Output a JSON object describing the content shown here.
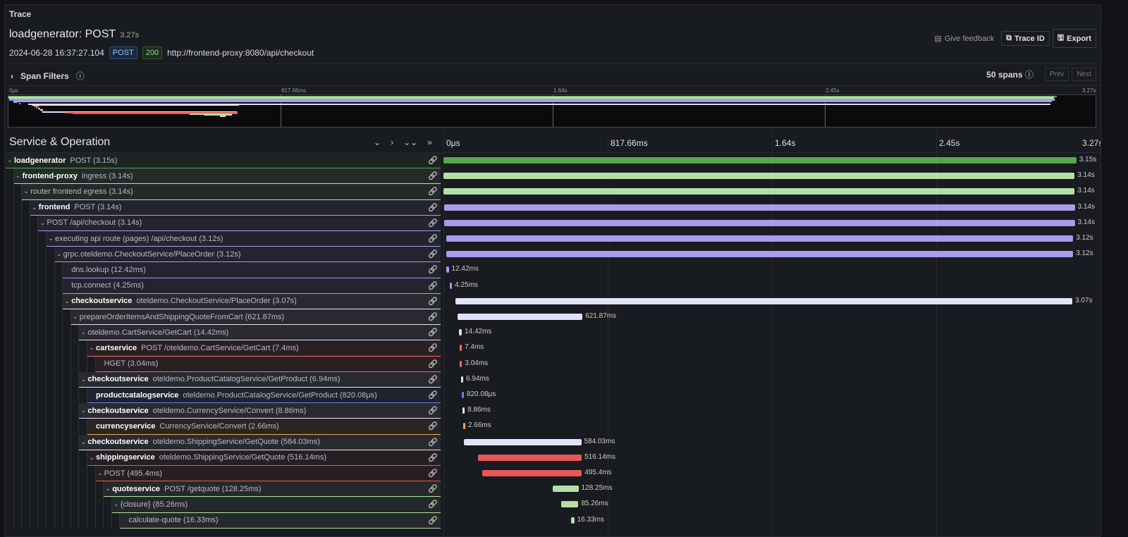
{
  "panel": {
    "title": "Trace"
  },
  "trace": {
    "name": "loadgenerator: POST",
    "duration": "3.27s",
    "timestamp": "2024-06-28 16:37:27.104",
    "method": "POST",
    "status": "200",
    "url": "http://frontend-proxy:8080/api/checkout"
  },
  "actions": {
    "feedback": "Give feedback",
    "trace_id": "Trace ID",
    "export": "Export"
  },
  "filters": {
    "label": "Span Filters",
    "span_count": "50 spans",
    "prev": "Prev",
    "next": "Next"
  },
  "minimap": {
    "ticks": [
      "0μs",
      "817.66ms",
      "1.64s",
      "2.45s",
      "3.27s"
    ]
  },
  "header": {
    "title": "Service & Operation",
    "ticks": [
      "0μs",
      "817.66ms",
      "1.64s",
      "2.45s",
      "3.27s"
    ]
  },
  "timeline": {
    "total_s": 3.27
  },
  "colors": {
    "loadgenerator": "#56a64b",
    "frontend-proxy": "#b4e0a8",
    "frontend": "#a89cec",
    "checkoutservice": "#e4e0fa",
    "cartservice": "#ef6b6b",
    "productcatalogservice": "#6e7ff0",
    "currencyservice": "#f0a84a",
    "shippingservice": "#e95656",
    "quoteservice": "#b4e0a8"
  },
  "spans": [
    {
      "svc": "loadgenerator",
      "op": "POST (3.15s)",
      "d": 0,
      "c": 1,
      "s": 0,
      "dur": 3.15,
      "label": "3.15s",
      "col": "loadgenerator"
    },
    {
      "svc": "frontend-proxy",
      "op": "ingress (3.14s)",
      "d": 1,
      "c": 1,
      "s": 0.001,
      "dur": 3.14,
      "label": "3.14s",
      "col": "frontend-proxy"
    },
    {
      "svc": "",
      "op": "router frontend egress (3.14s)",
      "d": 2,
      "c": 1,
      "s": 0.001,
      "dur": 3.14,
      "label": "3.14s",
      "col": "frontend-proxy"
    },
    {
      "svc": "frontend",
      "op": "POST (3.14s)",
      "d": 3,
      "c": 1,
      "s": 0.002,
      "dur": 3.14,
      "label": "3.14s",
      "col": "frontend"
    },
    {
      "svc": "",
      "op": "POST /api/checkout (3.14s)",
      "d": 4,
      "c": 1,
      "s": 0.002,
      "dur": 3.14,
      "label": "3.14s",
      "col": "frontend"
    },
    {
      "svc": "",
      "op": "executing api route (pages) /api/checkout (3.12s)",
      "d": 5,
      "c": 1,
      "s": 0.014,
      "dur": 3.12,
      "label": "3.12s",
      "col": "frontend"
    },
    {
      "svc": "",
      "op": "grpc.oteldemo.CheckoutService/PlaceOrder (3.12s)",
      "d": 6,
      "c": 1,
      "s": 0.014,
      "dur": 3.12,
      "label": "3.12s",
      "col": "frontend"
    },
    {
      "svc": "",
      "op": "dns.lookup (12.42ms)",
      "d": 7,
      "c": 0,
      "s": 0.014,
      "dur": 0.01242,
      "label": "12.42ms",
      "col": "frontend"
    },
    {
      "svc": "",
      "op": "tcp.connect (4.25ms)",
      "d": 7,
      "c": 0,
      "s": 0.032,
      "dur": 0.00425,
      "label": "4.25ms",
      "col": "frontend"
    },
    {
      "svc": "checkoutservice",
      "op": "oteldemo.CheckoutService/PlaceOrder (3.07s)",
      "d": 7,
      "c": 1,
      "s": 0.06,
      "dur": 3.07,
      "label": "3.07s",
      "col": "checkoutservice"
    },
    {
      "svc": "",
      "op": "prepareOrderItemsAndShippingQuoteFromCart (621.87ms)",
      "d": 8,
      "c": 1,
      "s": 0.07,
      "dur": 0.62187,
      "label": "621.87ms",
      "col": "checkoutservice"
    },
    {
      "svc": "",
      "op": "oteldemo.CartService/GetCart (14.42ms)",
      "d": 9,
      "c": 1,
      "s": 0.077,
      "dur": 0.01442,
      "label": "14.42ms",
      "col": "checkoutservice"
    },
    {
      "svc": "cartservice",
      "op": "POST /oteldemo.CartService/GetCart (7.4ms)",
      "d": 10,
      "c": 1,
      "s": 0.081,
      "dur": 0.0074,
      "label": "7.4ms",
      "col": "cartservice"
    },
    {
      "svc": "",
      "op": "HGET (3.04ms)",
      "d": 11,
      "c": 0,
      "s": 0.082,
      "dur": 0.00304,
      "label": "3.04ms",
      "col": "cartservice"
    },
    {
      "svc": "checkoutservice",
      "op": "oteldemo.ProductCatalogService/GetProduct (6.94ms)",
      "d": 9,
      "c": 1,
      "s": 0.088,
      "dur": 0.00694,
      "label": "6.94ms",
      "col": "checkoutservice"
    },
    {
      "svc": "productcatalogservice",
      "op": "oteldemo.ProductCatalogService/GetProduct (820.08μs)",
      "d": 10,
      "c": 0,
      "s": 0.091,
      "dur": 0.00082,
      "label": "820.08μs",
      "col": "productcatalogservice"
    },
    {
      "svc": "checkoutservice",
      "op": "oteldemo.CurrencyService/Convert (8.86ms)",
      "d": 9,
      "c": 1,
      "s": 0.095,
      "dur": 0.00886,
      "label": "8.86ms",
      "col": "checkoutservice"
    },
    {
      "svc": "currencyservice",
      "op": "CurrencyService/Convert (2.66ms)",
      "d": 10,
      "c": 0,
      "s": 0.098,
      "dur": 0.00266,
      "label": "2.66ms",
      "col": "currencyservice"
    },
    {
      "svc": "checkoutservice",
      "op": "oteldemo.ShippingService/GetQuote (584.03ms)",
      "d": 9,
      "c": 1,
      "s": 0.102,
      "dur": 0.58403,
      "label": "584.03ms",
      "col": "checkoutservice"
    },
    {
      "svc": "shippingservice",
      "op": "oteldemo.ShippingService/GetQuote (516.14ms)",
      "d": 10,
      "c": 1,
      "s": 0.172,
      "dur": 0.51614,
      "label": "516.14ms",
      "col": "shippingservice"
    },
    {
      "svc": "",
      "op": "POST (495.4ms)",
      "d": 11,
      "c": 1,
      "s": 0.193,
      "dur": 0.4954,
      "label": "495.4ms",
      "col": "shippingservice"
    },
    {
      "svc": "quoteservice",
      "op": "POST /getquote (128.25ms)",
      "d": 12,
      "c": 1,
      "s": 0.544,
      "dur": 0.12825,
      "label": "128.25ms",
      "col": "quoteservice"
    },
    {
      "svc": "",
      "op": "{closure} (85.26ms)",
      "d": 13,
      "c": 1,
      "s": 0.586,
      "dur": 0.08526,
      "label": "85.26ms",
      "col": "quoteservice"
    },
    {
      "svc": "",
      "op": "calculate-quote (16.33ms)",
      "d": 14,
      "c": 0,
      "s": 0.635,
      "dur": 0.01633,
      "label": "16.33ms",
      "col": "quoteservice"
    }
  ]
}
